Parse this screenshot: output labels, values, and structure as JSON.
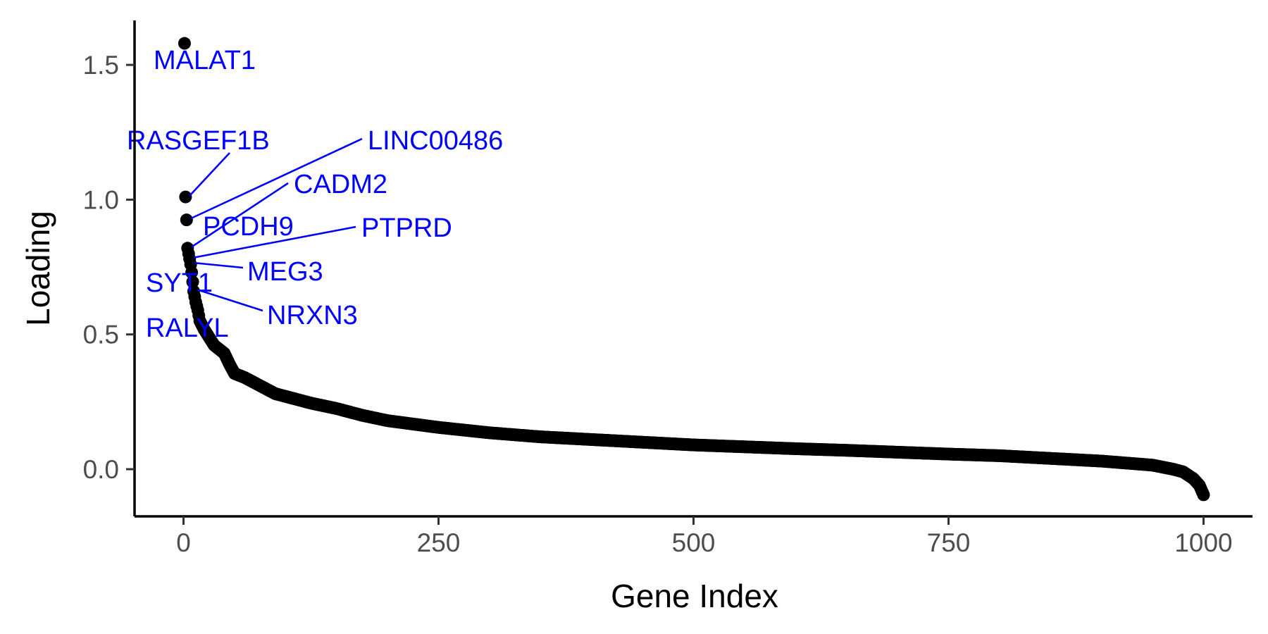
{
  "chart_data": {
    "type": "scatter",
    "title": "",
    "xlabel": "Gene Index",
    "ylabel": "Loading",
    "xlim": [
      -48,
      1048
    ],
    "ylim": [
      -0.175,
      1.665
    ],
    "x_ticks": [
      0,
      250,
      500,
      750,
      1000
    ],
    "x_tick_labels": [
      "0",
      "250",
      "500",
      "750",
      "1000"
    ],
    "y_ticks": [
      0.0,
      0.5,
      1.0,
      1.5
    ],
    "y_tick_labels": [
      "0.0",
      "0.5",
      "1.0",
      "1.5"
    ],
    "grid": false,
    "legend": "none",
    "point_color": "#000000",
    "label_color": "#0000ff",
    "curve_anchors": [
      [
        1,
        1.58
      ],
      [
        2,
        1.01
      ],
      [
        3,
        0.925
      ],
      [
        4,
        0.82
      ],
      [
        5,
        0.8
      ],
      [
        6,
        0.78
      ],
      [
        7,
        0.76
      ],
      [
        8,
        0.73
      ],
      [
        10,
        0.66
      ],
      [
        12,
        0.62
      ],
      [
        14,
        0.59
      ],
      [
        16,
        0.55
      ],
      [
        20,
        0.52
      ],
      [
        25,
        0.49
      ],
      [
        30,
        0.46
      ],
      [
        40,
        0.43
      ],
      [
        45,
        0.39
      ],
      [
        50,
        0.355
      ],
      [
        60,
        0.34
      ],
      [
        75,
        0.31
      ],
      [
        90,
        0.28
      ],
      [
        100,
        0.27
      ],
      [
        125,
        0.245
      ],
      [
        150,
        0.225
      ],
      [
        175,
        0.2
      ],
      [
        200,
        0.18
      ],
      [
        250,
        0.155
      ],
      [
        300,
        0.135
      ],
      [
        350,
        0.12
      ],
      [
        400,
        0.11
      ],
      [
        450,
        0.1
      ],
      [
        500,
        0.09
      ],
      [
        550,
        0.083
      ],
      [
        600,
        0.076
      ],
      [
        650,
        0.07
      ],
      [
        700,
        0.063
      ],
      [
        750,
        0.056
      ],
      [
        800,
        0.05
      ],
      [
        850,
        0.04
      ],
      [
        900,
        0.03
      ],
      [
        950,
        0.015
      ],
      [
        970,
        0.0
      ],
      [
        980,
        -0.01
      ],
      [
        990,
        -0.035
      ],
      [
        996,
        -0.06
      ],
      [
        1000,
        -0.095
      ]
    ],
    "labeled_genes": [
      {
        "name": "MALAT1",
        "x": 1,
        "y": 1.58
      },
      {
        "name": "RASGEF1B",
        "x": 2,
        "y": 1.01
      },
      {
        "name": "LINC00486",
        "x": 3,
        "y": 0.925
      },
      {
        "name": "CADM2",
        "x": 4,
        "y": 0.82
      },
      {
        "name": "PCDH9",
        "x": 5,
        "y": 0.8
      },
      {
        "name": "PTPRD",
        "x": 6,
        "y": 0.78
      },
      {
        "name": "MEG3",
        "x": 7,
        "y": 0.76
      },
      {
        "name": "SYT1",
        "x": 8,
        "y": 0.73
      },
      {
        "name": "NRXN3",
        "x": 10,
        "y": 0.66
      },
      {
        "name": "RALYL",
        "x": 12,
        "y": 0.62
      }
    ]
  }
}
